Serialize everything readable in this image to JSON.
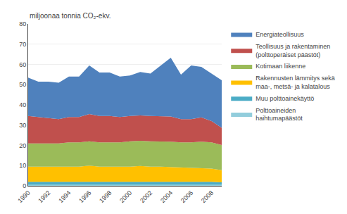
{
  "chart_data": {
    "type": "area",
    "stacked": true,
    "ylabel": "miljoonaa tonnia CO₂-ekv.",
    "x": [
      1990,
      1991,
      1992,
      1993,
      1994,
      1995,
      1996,
      1997,
      1998,
      1999,
      2000,
      2001,
      2002,
      2003,
      2004,
      2005,
      2006,
      2007,
      2008,
      2009
    ],
    "series": [
      {
        "name": "Polttoaineiden\nhaihtumapäästöt",
        "color": "#92CDDC",
        "values": [
          0.5,
          0.5,
          0.5,
          0.5,
          0.5,
          0.5,
          0.5,
          0.5,
          0.5,
          0.5,
          0.5,
          0.5,
          0.5,
          0.5,
          0.5,
          0.5,
          0.5,
          0.5,
          0.5,
          0.5
        ]
      },
      {
        "name": "Muu polttoainekäyttö",
        "color": "#4BACC6",
        "values": [
          1.5,
          1.5,
          1.5,
          1.5,
          1.5,
          1.5,
          1.5,
          1.5,
          1.5,
          1.5,
          1.5,
          1.5,
          1.5,
          1.5,
          1.5,
          1.5,
          1.5,
          1.5,
          1.5,
          1.2
        ]
      },
      {
        "name": "Rakennusten lämmitys sekä\nmaa-, metsä- ja kalatalous",
        "color": "#FFC000",
        "values": [
          7.5,
          7.5,
          7.5,
          7.5,
          7.5,
          7.5,
          8.0,
          7.5,
          7.5,
          7.5,
          7.5,
          7.8,
          7.5,
          7.5,
          7.3,
          7.0,
          7.0,
          6.8,
          6.5,
          6.0
        ]
      },
      {
        "name": "Kotimaan liikenne",
        "color": "#9BBB59",
        "values": [
          11.5,
          11.5,
          11.5,
          11.5,
          12.0,
          12.0,
          12.0,
          12.0,
          12.0,
          12.0,
          12.5,
          12.5,
          12.5,
          12.5,
          12.5,
          12.5,
          12.5,
          13.0,
          13.0,
          12.5
        ]
      },
      {
        "name": "Teollisuus ja rakentaminen\n(polttoperäiset päästöt)",
        "color": "#C0504D",
        "values": [
          13.5,
          13.0,
          12.5,
          12.0,
          12.5,
          12.5,
          13.5,
          13.0,
          13.0,
          12.5,
          12.5,
          12.5,
          12.5,
          12.5,
          12.5,
          11.5,
          11.5,
          12.0,
          10.5,
          8.5
        ]
      },
      {
        "name": "Energiateollisuus",
        "color": "#4F81BD",
        "values": [
          19.0,
          17.5,
          18.0,
          18.0,
          20.0,
          20.0,
          24.0,
          21.5,
          21.5,
          20.0,
          20.0,
          21.5,
          21.0,
          25.0,
          29.0,
          22.0,
          26.5,
          25.0,
          23.5,
          23.5
        ]
      }
    ],
    "xlim": [
      1990,
      2009
    ],
    "xticks": [
      1990,
      1992,
      1994,
      1996,
      1998,
      2000,
      2002,
      2004,
      2006,
      2008
    ],
    "ylim": [
      0,
      80
    ],
    "yticks": [
      0,
      10,
      20,
      30,
      40,
      50,
      60,
      70,
      80
    ],
    "grid": true,
    "legend": "right"
  }
}
